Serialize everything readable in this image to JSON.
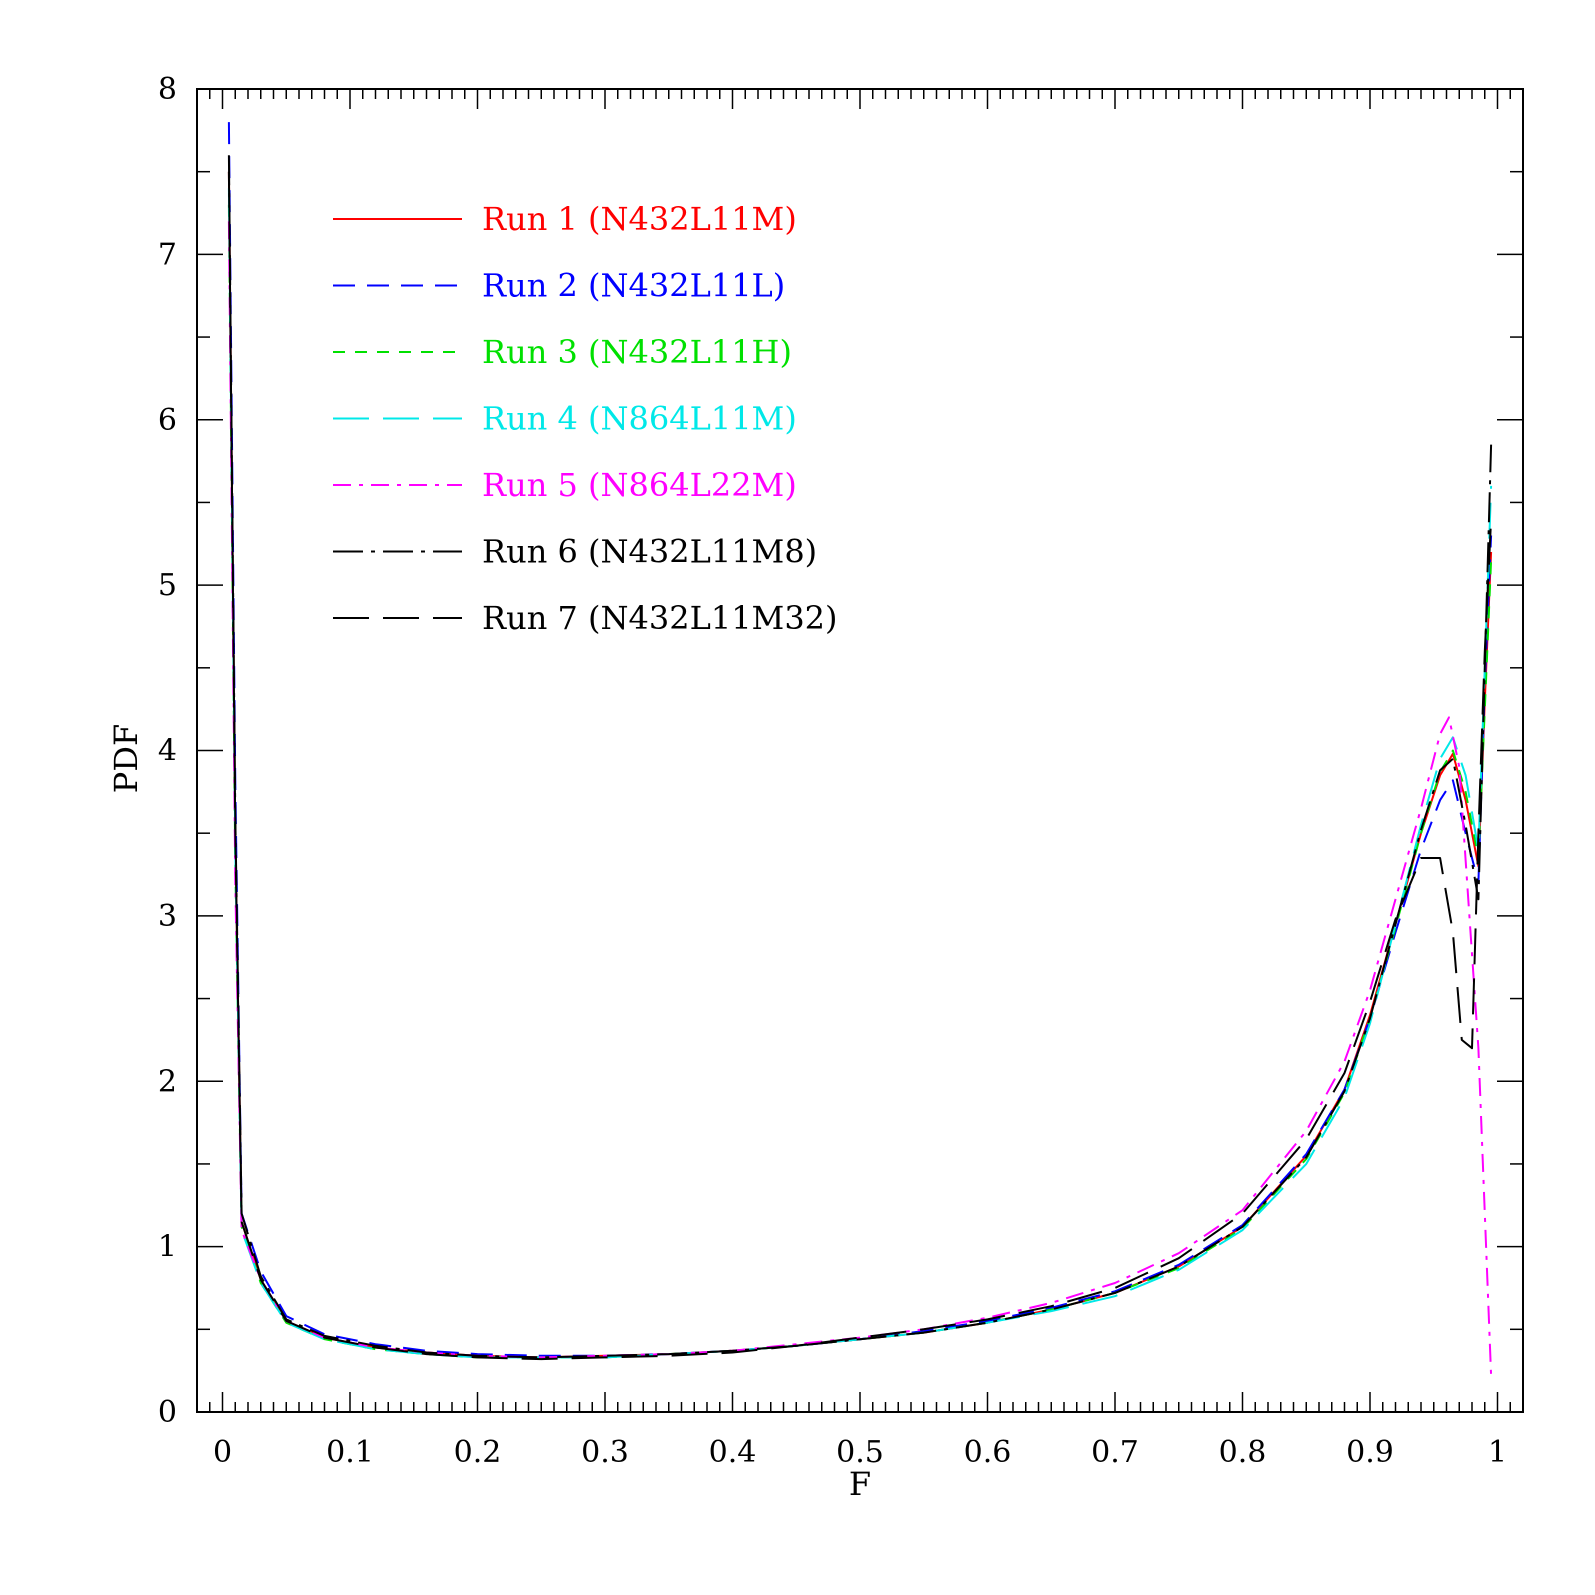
{
  "chart_data": {
    "type": "line",
    "title": "",
    "xlabel": "F",
    "ylabel": "PDF",
    "xlim": [
      -0.02,
      1.02
    ],
    "ylim": [
      0,
      8
    ],
    "xticks": [
      0,
      0.1,
      0.2,
      0.3,
      0.4,
      0.5,
      0.6,
      0.7,
      0.8,
      0.9,
      1
    ],
    "xtick_labels": [
      "0",
      "0.1",
      "0.2",
      "0.3",
      "0.4",
      "0.5",
      "0.6",
      "0.7",
      "0.8",
      "0.9",
      "1"
    ],
    "yticks": [
      0,
      1,
      2,
      3,
      4,
      5,
      6,
      7,
      8
    ],
    "ytick_labels": [
      "0",
      "1",
      "2",
      "3",
      "4",
      "5",
      "6",
      "7",
      "8"
    ],
    "grid": false,
    "legend_position": "top-left",
    "series": [
      {
        "name": "Run 1 (N432L11M)",
        "color": "#ff0000",
        "dash": "solid",
        "x": [
          0.005,
          0.01,
          0.015,
          0.03,
          0.05,
          0.08,
          0.12,
          0.16,
          0.2,
          0.25,
          0.3,
          0.35,
          0.4,
          0.45,
          0.5,
          0.55,
          0.6,
          0.65,
          0.7,
          0.75,
          0.8,
          0.85,
          0.88,
          0.9,
          0.92,
          0.94,
          0.955,
          0.965,
          0.975,
          0.985,
          0.99,
          0.995
        ],
        "y": [
          7.5,
          3.5,
          1.15,
          0.8,
          0.55,
          0.45,
          0.39,
          0.36,
          0.34,
          0.33,
          0.34,
          0.35,
          0.37,
          0.4,
          0.44,
          0.48,
          0.54,
          0.62,
          0.72,
          0.88,
          1.12,
          1.55,
          1.95,
          2.4,
          2.95,
          3.5,
          3.85,
          3.98,
          3.7,
          3.3,
          4.3,
          5.2
        ]
      },
      {
        "name": "Run 2 (N432L11L)",
        "color": "#0000ff",
        "dash": "dash",
        "x": [
          0.005,
          0.01,
          0.015,
          0.03,
          0.05,
          0.08,
          0.12,
          0.16,
          0.2,
          0.25,
          0.3,
          0.35,
          0.4,
          0.45,
          0.5,
          0.55,
          0.6,
          0.65,
          0.7,
          0.75,
          0.8,
          0.85,
          0.88,
          0.9,
          0.92,
          0.94,
          0.955,
          0.965,
          0.975,
          0.985,
          0.99,
          0.995
        ],
        "y": [
          7.8,
          3.8,
          1.2,
          0.85,
          0.58,
          0.47,
          0.41,
          0.37,
          0.35,
          0.34,
          0.34,
          0.35,
          0.37,
          0.4,
          0.44,
          0.49,
          0.55,
          0.63,
          0.73,
          0.89,
          1.13,
          1.56,
          1.95,
          2.38,
          2.9,
          3.4,
          3.7,
          3.82,
          3.5,
          3.2,
          4.4,
          5.3
        ]
      },
      {
        "name": "Run 3 (N432L11H)",
        "color": "#00e000",
        "dash": "shortdash",
        "x": [
          0.005,
          0.01,
          0.015,
          0.03,
          0.05,
          0.08,
          0.12,
          0.16,
          0.2,
          0.25,
          0.3,
          0.35,
          0.4,
          0.45,
          0.5,
          0.55,
          0.6,
          0.65,
          0.7,
          0.75,
          0.8,
          0.85,
          0.88,
          0.9,
          0.92,
          0.94,
          0.955,
          0.965,
          0.975,
          0.985,
          0.99,
          0.995
        ],
        "y": [
          7.3,
          3.3,
          1.12,
          0.78,
          0.54,
          0.44,
          0.38,
          0.35,
          0.33,
          0.33,
          0.33,
          0.35,
          0.37,
          0.4,
          0.44,
          0.48,
          0.54,
          0.62,
          0.72,
          0.87,
          1.11,
          1.53,
          1.93,
          2.38,
          2.93,
          3.5,
          3.87,
          4.0,
          3.75,
          3.35,
          4.25,
          5.15
        ]
      },
      {
        "name": "Run 4 (N864L11M)",
        "color": "#00e8e8",
        "dash": "longdash",
        "x": [
          0.005,
          0.01,
          0.015,
          0.03,
          0.05,
          0.08,
          0.12,
          0.16,
          0.2,
          0.25,
          0.3,
          0.35,
          0.4,
          0.45,
          0.5,
          0.55,
          0.6,
          0.65,
          0.7,
          0.75,
          0.8,
          0.85,
          0.88,
          0.9,
          0.92,
          0.94,
          0.955,
          0.965,
          0.975,
          0.985,
          0.99,
          0.995
        ],
        "y": [
          7.4,
          3.4,
          1.1,
          0.78,
          0.54,
          0.44,
          0.38,
          0.35,
          0.33,
          0.33,
          0.33,
          0.35,
          0.37,
          0.4,
          0.44,
          0.48,
          0.54,
          0.61,
          0.7,
          0.86,
          1.1,
          1.5,
          1.9,
          2.35,
          2.95,
          3.55,
          3.95,
          4.08,
          3.85,
          3.4,
          4.5,
          5.6
        ]
      },
      {
        "name": "Run 5 (N864L22M)",
        "color": "#ff00ff",
        "dash": "dashdot",
        "x": [
          0.005,
          0.01,
          0.015,
          0.03,
          0.05,
          0.08,
          0.12,
          0.16,
          0.2,
          0.25,
          0.3,
          0.35,
          0.4,
          0.45,
          0.5,
          0.55,
          0.6,
          0.65,
          0.7,
          0.75,
          0.8,
          0.85,
          0.88,
          0.9,
          0.92,
          0.94,
          0.955,
          0.962,
          0.97,
          0.978,
          0.985,
          0.99,
          0.995
        ],
        "y": [
          7.2,
          3.2,
          1.1,
          0.8,
          0.55,
          0.45,
          0.39,
          0.36,
          0.34,
          0.33,
          0.34,
          0.35,
          0.37,
          0.41,
          0.45,
          0.5,
          0.57,
          0.66,
          0.78,
          0.96,
          1.22,
          1.7,
          2.12,
          2.55,
          3.1,
          3.65,
          4.1,
          4.2,
          3.9,
          3.0,
          2.2,
          1.2,
          0.22
        ]
      },
      {
        "name": "Run 6 (N432L11M8)",
        "color": "#000000",
        "dash": "dashdotlong",
        "x": [
          0.005,
          0.01,
          0.015,
          0.03,
          0.05,
          0.08,
          0.12,
          0.16,
          0.2,
          0.25,
          0.3,
          0.35,
          0.4,
          0.45,
          0.5,
          0.55,
          0.6,
          0.65,
          0.7,
          0.75,
          0.8,
          0.85,
          0.88,
          0.9,
          0.92,
          0.94,
          0.955,
          0.965,
          0.975,
          0.985,
          0.99,
          0.995
        ],
        "y": [
          7.6,
          3.6,
          1.2,
          0.82,
          0.56,
          0.46,
          0.4,
          0.36,
          0.34,
          0.33,
          0.34,
          0.35,
          0.37,
          0.4,
          0.44,
          0.48,
          0.54,
          0.62,
          0.72,
          0.88,
          1.12,
          1.54,
          1.94,
          2.38,
          2.95,
          3.52,
          3.88,
          3.95,
          3.55,
          3.1,
          4.5,
          5.85
        ]
      },
      {
        "name": "Run 7 (N432L11M32)",
        "color": "#000000",
        "dash": "longdash",
        "x": [
          0.005,
          0.01,
          0.015,
          0.03,
          0.05,
          0.08,
          0.12,
          0.16,
          0.2,
          0.25,
          0.3,
          0.35,
          0.4,
          0.45,
          0.5,
          0.55,
          0.6,
          0.65,
          0.7,
          0.75,
          0.8,
          0.85,
          0.88,
          0.9,
          0.92,
          0.94,
          0.955,
          0.965,
          0.972,
          0.98,
          0.985,
          0.99,
          0.995
        ],
        "y": [
          7.5,
          3.5,
          1.15,
          0.8,
          0.55,
          0.45,
          0.39,
          0.35,
          0.33,
          0.32,
          0.33,
          0.34,
          0.36,
          0.4,
          0.45,
          0.5,
          0.56,
          0.64,
          0.75,
          0.93,
          1.2,
          1.65,
          2.05,
          2.48,
          2.98,
          3.35,
          3.35,
          2.9,
          2.25,
          2.2,
          3.5,
          4.6,
          5.4
        ]
      }
    ]
  }
}
